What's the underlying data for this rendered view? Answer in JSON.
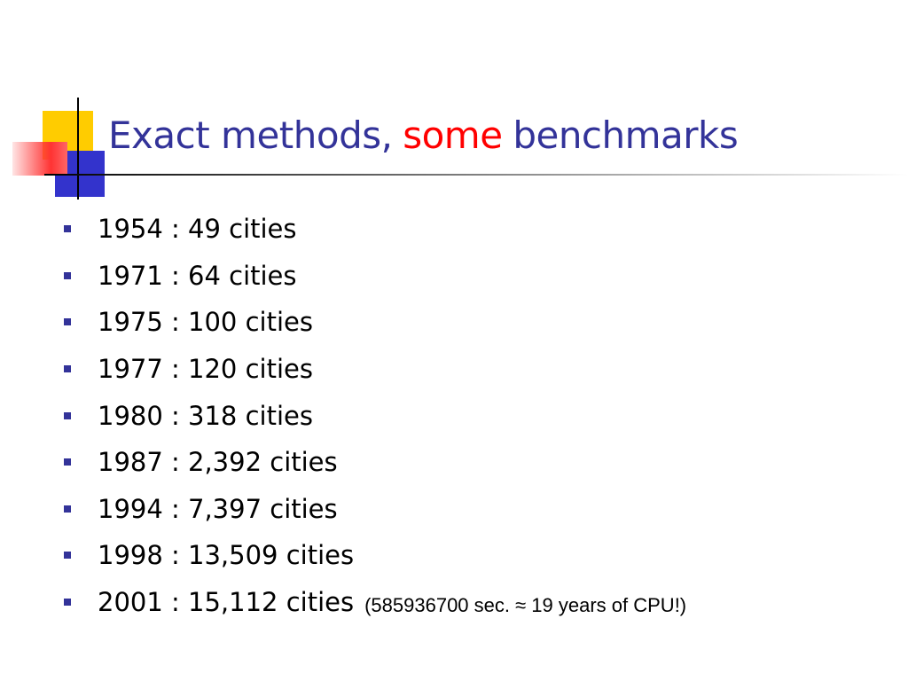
{
  "title": {
    "parts": [
      "Exact methods,",
      "some",
      "benchmarks"
    ]
  },
  "bullets": [
    {
      "text": "1954 : 49 cities"
    },
    {
      "text": "1971 : 64 cities"
    },
    {
      "text": "1975 : 100 cities"
    },
    {
      "text": "1977 : 120 cities"
    },
    {
      "text": "1980 : 318 cities"
    },
    {
      "text": "1987 : 2,392 cities"
    },
    {
      "text": "1994 : 7,397 cities"
    },
    {
      "text": "1998 : 13,509 cities"
    },
    {
      "text": "2001 : 15,112 cities",
      "note": "(585936700 sec. ≈ 19 years of CPU!)"
    }
  ]
}
